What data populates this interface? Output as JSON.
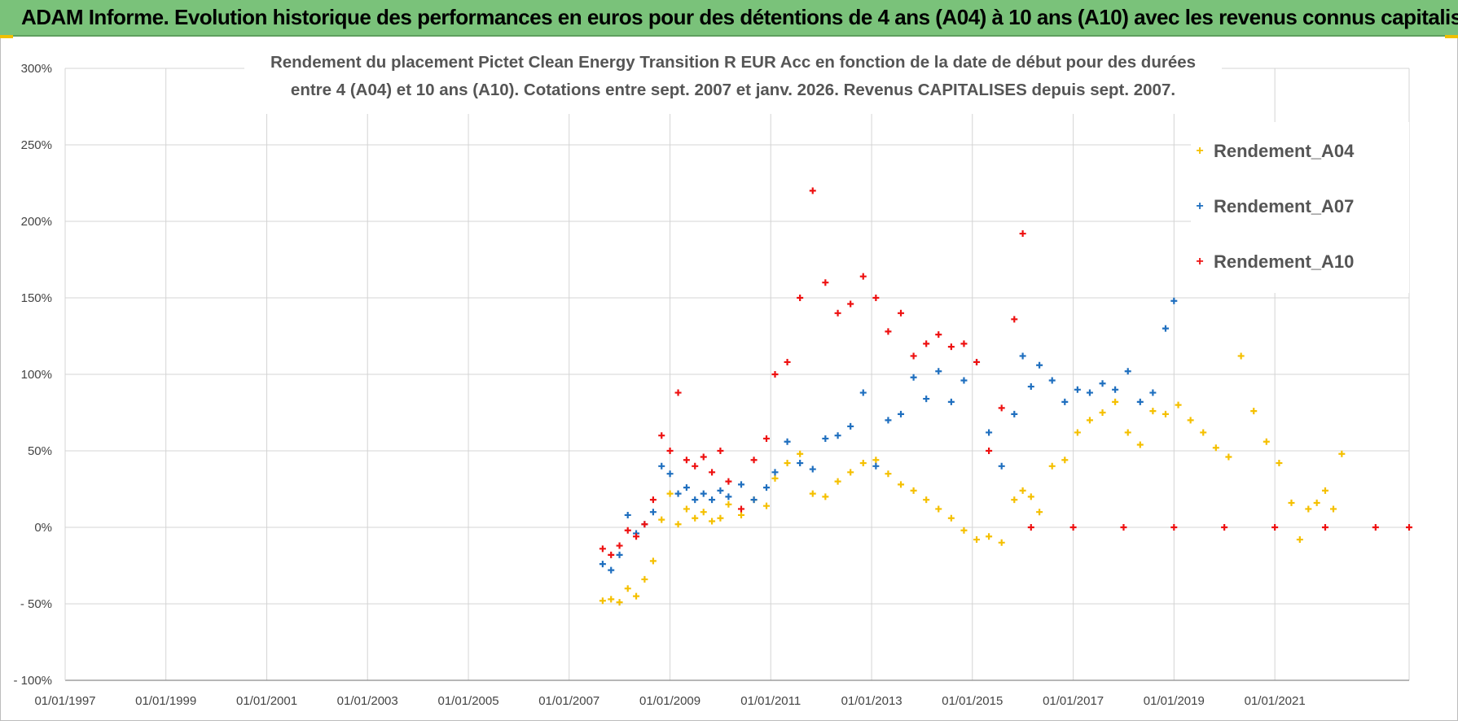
{
  "header": {
    "banner": "ADAM Informe. Evolution historique des performances en euros pour des détentions de 4 ans (A04) à 10 ans (A10) avec les revenus connus capitalisés"
  },
  "chart_data": {
    "type": "scatter",
    "title": "Rendement du placement Pictet Clean Energy Transition R EUR Acc en fonction de la date de début pour des durées",
    "subtitle": "entre 4 (A04) et 10 ans (A10).  Cotations entre sept. 2007 et janv. 2026. Revenus CAPITALISES depuis sept. 2007.",
    "xlabel": "",
    "ylabel": "",
    "xlim": [
      "1997-01-01",
      "2023-09-01"
    ],
    "ylim": [
      -100,
      300
    ],
    "x_ticks": [
      "01/01/1997",
      "01/01/1999",
      "01/01/2001",
      "01/01/2003",
      "01/01/2005",
      "01/01/2007",
      "01/01/2009",
      "01/01/2011",
      "01/01/2013",
      "01/01/2015",
      "01/01/2017",
      "01/01/2019",
      "01/01/2021"
    ],
    "y_ticks": [
      {
        "value": 300,
        "label": "300%"
      },
      {
        "value": 250,
        "label": "250%"
      },
      {
        "value": 200,
        "label": "200%"
      },
      {
        "value": 150,
        "label": "150%"
      },
      {
        "value": 100,
        "label": "100%"
      },
      {
        "value": 50,
        "label": "50%"
      },
      {
        "value": 0,
        "label": "0%"
      },
      {
        "value": -50,
        "label": "- 50%"
      },
      {
        "value": -100,
        "label": "- 100%"
      }
    ],
    "grid": true,
    "legend_position": "top-right",
    "series": [
      {
        "name": "Rendement_A04",
        "color": "#f5c000",
        "points": [
          [
            "2007-09-01",
            -48
          ],
          [
            "2007-11-01",
            -47
          ],
          [
            "2008-01-01",
            -49
          ],
          [
            "2008-03-01",
            -40
          ],
          [
            "2008-05-01",
            -45
          ],
          [
            "2008-07-01",
            -34
          ],
          [
            "2008-09-01",
            -22
          ],
          [
            "2008-11-01",
            5
          ],
          [
            "2009-01-01",
            22
          ],
          [
            "2009-03-01",
            2
          ],
          [
            "2009-05-01",
            12
          ],
          [
            "2009-07-01",
            6
          ],
          [
            "2009-09-01",
            10
          ],
          [
            "2009-11-01",
            4
          ],
          [
            "2010-01-01",
            6
          ],
          [
            "2010-03-01",
            15
          ],
          [
            "2010-06-01",
            8
          ],
          [
            "2010-09-01",
            18
          ],
          [
            "2010-12-01",
            14
          ],
          [
            "2011-02-01",
            32
          ],
          [
            "2011-05-01",
            42
          ],
          [
            "2011-08-01",
            48
          ],
          [
            "2011-11-01",
            22
          ],
          [
            "2012-02-01",
            20
          ],
          [
            "2012-05-01",
            30
          ],
          [
            "2012-08-01",
            36
          ],
          [
            "2012-11-01",
            42
          ],
          [
            "2013-02-01",
            44
          ],
          [
            "2013-05-01",
            35
          ],
          [
            "2013-08-01",
            28
          ],
          [
            "2013-11-01",
            24
          ],
          [
            "2014-02-01",
            18
          ],
          [
            "2014-05-01",
            12
          ],
          [
            "2014-08-01",
            6
          ],
          [
            "2014-11-01",
            -2
          ],
          [
            "2015-02-01",
            -8
          ],
          [
            "2015-05-01",
            -6
          ],
          [
            "2015-08-01",
            -10
          ],
          [
            "2015-11-01",
            18
          ],
          [
            "2016-01-01",
            24
          ],
          [
            "2016-03-01",
            20
          ],
          [
            "2016-05-01",
            10
          ],
          [
            "2016-08-01",
            40
          ],
          [
            "2016-11-01",
            44
          ],
          [
            "2017-02-01",
            62
          ],
          [
            "2017-05-01",
            70
          ],
          [
            "2017-08-01",
            75
          ],
          [
            "2017-11-01",
            82
          ],
          [
            "2018-02-01",
            62
          ],
          [
            "2018-05-01",
            54
          ],
          [
            "2018-08-01",
            76
          ],
          [
            "2018-11-01",
            74
          ],
          [
            "2019-02-01",
            80
          ],
          [
            "2019-05-01",
            70
          ],
          [
            "2019-08-01",
            62
          ],
          [
            "2019-11-01",
            52
          ],
          [
            "2020-02-01",
            46
          ],
          [
            "2020-05-01",
            112
          ],
          [
            "2020-08-01",
            76
          ],
          [
            "2020-11-01",
            56
          ],
          [
            "2021-02-01",
            42
          ],
          [
            "2021-05-01",
            16
          ],
          [
            "2021-07-01",
            -8
          ],
          [
            "2021-09-01",
            12
          ],
          [
            "2021-11-01",
            16
          ],
          [
            "2022-01-01",
            24
          ],
          [
            "2022-03-01",
            12
          ],
          [
            "2022-05-01",
            48
          ]
        ]
      },
      {
        "name": "Rendement_A07",
        "color": "#1f6fbf",
        "points": [
          [
            "2007-09-01",
            -24
          ],
          [
            "2007-11-01",
            -28
          ],
          [
            "2008-01-01",
            -18
          ],
          [
            "2008-03-01",
            8
          ],
          [
            "2008-05-01",
            -4
          ],
          [
            "2008-07-01",
            2
          ],
          [
            "2008-09-01",
            10
          ],
          [
            "2008-11-01",
            40
          ],
          [
            "2009-01-01",
            35
          ],
          [
            "2009-03-01",
            22
          ],
          [
            "2009-05-01",
            26
          ],
          [
            "2009-07-01",
            18
          ],
          [
            "2009-09-01",
            22
          ],
          [
            "2009-11-01",
            18
          ],
          [
            "2010-01-01",
            24
          ],
          [
            "2010-03-01",
            20
          ],
          [
            "2010-06-01",
            28
          ],
          [
            "2010-09-01",
            18
          ],
          [
            "2010-12-01",
            26
          ],
          [
            "2011-02-01",
            36
          ],
          [
            "2011-05-01",
            56
          ],
          [
            "2011-08-01",
            42
          ],
          [
            "2011-11-01",
            38
          ],
          [
            "2012-02-01",
            58
          ],
          [
            "2012-05-01",
            60
          ],
          [
            "2012-08-01",
            66
          ],
          [
            "2012-11-01",
            88
          ],
          [
            "2013-02-01",
            40
          ],
          [
            "2013-05-01",
            70
          ],
          [
            "2013-08-01",
            74
          ],
          [
            "2013-11-01",
            98
          ],
          [
            "2014-02-01",
            84
          ],
          [
            "2014-05-01",
            102
          ],
          [
            "2014-08-01",
            82
          ],
          [
            "2014-11-01",
            96
          ],
          [
            "2015-02-01",
            108
          ],
          [
            "2015-05-01",
            62
          ],
          [
            "2015-08-01",
            40
          ],
          [
            "2015-11-01",
            74
          ],
          [
            "2016-01-01",
            112
          ],
          [
            "2016-03-01",
            92
          ],
          [
            "2016-05-01",
            106
          ],
          [
            "2016-08-01",
            96
          ],
          [
            "2016-11-01",
            82
          ],
          [
            "2017-02-01",
            90
          ],
          [
            "2017-05-01",
            88
          ],
          [
            "2017-08-01",
            94
          ],
          [
            "2017-11-01",
            90
          ],
          [
            "2018-02-01",
            102
          ],
          [
            "2018-05-01",
            82
          ],
          [
            "2018-08-01",
            88
          ],
          [
            "2018-11-01",
            130
          ],
          [
            "2019-01-01",
            148
          ]
        ]
      },
      {
        "name": "Rendement_A10",
        "color": "#ee1111",
        "points": [
          [
            "2007-09-01",
            -14
          ],
          [
            "2007-11-01",
            -18
          ],
          [
            "2008-01-01",
            -12
          ],
          [
            "2008-03-01",
            -2
          ],
          [
            "2008-05-01",
            -6
          ],
          [
            "2008-07-01",
            2
          ],
          [
            "2008-09-01",
            18
          ],
          [
            "2008-11-01",
            60
          ],
          [
            "2009-01-01",
            50
          ],
          [
            "2009-03-01",
            88
          ],
          [
            "2009-05-01",
            44
          ],
          [
            "2009-07-01",
            40
          ],
          [
            "2009-09-01",
            46
          ],
          [
            "2009-11-01",
            36
          ],
          [
            "2010-01-01",
            50
          ],
          [
            "2010-03-01",
            30
          ],
          [
            "2010-06-01",
            12
          ],
          [
            "2010-09-01",
            44
          ],
          [
            "2010-12-01",
            58
          ],
          [
            "2011-02-01",
            100
          ],
          [
            "2011-05-01",
            108
          ],
          [
            "2011-08-01",
            150
          ],
          [
            "2011-11-01",
            220
          ],
          [
            "2012-02-01",
            160
          ],
          [
            "2012-05-01",
            140
          ],
          [
            "2012-08-01",
            146
          ],
          [
            "2012-11-01",
            164
          ],
          [
            "2013-02-01",
            150
          ],
          [
            "2013-05-01",
            128
          ],
          [
            "2013-08-01",
            140
          ],
          [
            "2013-11-01",
            112
          ],
          [
            "2014-02-01",
            120
          ],
          [
            "2014-05-01",
            126
          ],
          [
            "2014-08-01",
            118
          ],
          [
            "2014-11-01",
            120
          ],
          [
            "2015-02-01",
            108
          ],
          [
            "2015-05-01",
            50
          ],
          [
            "2015-08-01",
            78
          ],
          [
            "2015-11-01",
            136
          ],
          [
            "2016-01-01",
            192
          ],
          [
            "2016-03-01",
            0
          ],
          [
            "2017-01-01",
            0
          ],
          [
            "2018-01-01",
            0
          ],
          [
            "2019-01-01",
            0
          ],
          [
            "2020-01-01",
            0
          ],
          [
            "2021-01-01",
            0
          ],
          [
            "2022-01-01",
            0
          ],
          [
            "2023-01-01",
            0
          ],
          [
            "2023-09-01",
            0
          ]
        ]
      }
    ]
  }
}
